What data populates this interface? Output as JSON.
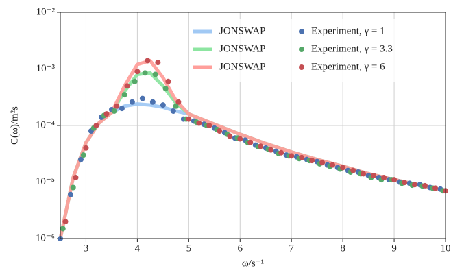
{
  "chart_data": {
    "type": "line",
    "xlabel": "ω/s⁻¹",
    "ylabel": "C(ω)/m²s",
    "xlim": [
      2.5,
      10
    ],
    "xticks": [
      3,
      4,
      5,
      6,
      7,
      8,
      9,
      10
    ],
    "ylim": [
      1e-06,
      0.01
    ],
    "log_y": true,
    "grid": true,
    "legend": "upper right",
    "yticks": [
      {
        "value": 1e-06,
        "label": "10⁻⁶"
      },
      {
        "value": 1e-05,
        "label": "10⁻⁵"
      },
      {
        "value": 0.0001,
        "label": "10⁻⁴"
      },
      {
        "value": 0.001,
        "label": "10⁻³"
      },
      {
        "value": 0.01,
        "label": "10⁻²"
      }
    ],
    "series": [
      {
        "name": "JONSWAP",
        "style": "line",
        "color": "#a1c9f4",
        "x": [
          2.5,
          2.75,
          3,
          3.25,
          3.5,
          3.75,
          4,
          4.25,
          4.5,
          4.75,
          5,
          5.5,
          6,
          6.5,
          7,
          7.5,
          8,
          8.5,
          9,
          9.5,
          10
        ],
        "values": [
          1e-06,
          1.2e-05,
          5e-05,
          0.00011,
          0.00017,
          0.00022,
          0.00024,
          0.00023,
          0.00021,
          0.00018,
          0.00016,
          0.000105,
          7e-05,
          4.8e-05,
          3.4e-05,
          2.5e-05,
          1.9e-05,
          1.4e-05,
          1.1e-05,
          8.8e-06,
          7e-06
        ]
      },
      {
        "name": "JONSWAP",
        "style": "line",
        "color": "#8de5a1",
        "x": [
          2.5,
          2.75,
          3,
          3.25,
          3.5,
          3.75,
          4,
          4.25,
          4.5,
          4.75,
          5,
          5.5,
          6,
          6.5,
          7,
          7.5,
          8,
          8.5,
          9,
          9.5,
          10
        ],
        "values": [
          1e-06,
          1.2e-05,
          5e-05,
          0.00011,
          0.00017,
          0.0004,
          0.0008,
          0.00085,
          0.0005,
          0.00025,
          0.00016,
          0.000105,
          7e-05,
          4.8e-05,
          3.4e-05,
          2.5e-05,
          1.9e-05,
          1.4e-05,
          1.1e-05,
          8.8e-06,
          7e-06
        ]
      },
      {
        "name": "JONSWAP",
        "style": "line",
        "color": "#ff9f9b",
        "x": [
          2.5,
          2.75,
          3,
          3.25,
          3.5,
          3.75,
          4,
          4.25,
          4.5,
          4.75,
          5,
          5.5,
          6,
          6.5,
          7,
          7.5,
          8,
          8.5,
          9,
          9.5,
          10
        ],
        "values": [
          1e-06,
          1.2e-05,
          5e-05,
          0.00011,
          0.00017,
          0.0005,
          0.0012,
          0.0014,
          0.0007,
          0.00028,
          0.00016,
          0.000105,
          7e-05,
          4.8e-05,
          3.4e-05,
          2.5e-05,
          1.9e-05,
          1.4e-05,
          1.1e-05,
          8.8e-06,
          7e-06
        ]
      },
      {
        "name": "Experiment, γ = 1",
        "style": "scatter",
        "color": "#4c72b0",
        "x": [
          2.5,
          2.7,
          2.9,
          3.1,
          3.3,
          3.5,
          3.7,
          3.9,
          4.1,
          4.3,
          4.5,
          4.7,
          4.9,
          5.1,
          5.3,
          5.5,
          5.7,
          5.9,
          6.1,
          6.3,
          6.5,
          6.7,
          6.9,
          7.1,
          7.3,
          7.5,
          7.7,
          7.9,
          8.1,
          8.3,
          8.5,
          8.7,
          8.9,
          9.1,
          9.3,
          9.5,
          9.7,
          9.9
        ],
        "values": [
          1e-06,
          6e-06,
          2.5e-05,
          8e-05,
          0.00014,
          0.00019,
          0.0002,
          0.00026,
          0.0003,
          0.00026,
          0.00023,
          0.00018,
          0.00013,
          0.00012,
          0.000105,
          9e-05,
          7.5e-05,
          6e-05,
          5.5e-05,
          4.5e-05,
          4e-05,
          3.5e-05,
          3e-05,
          2.8e-05,
          2.5e-05,
          2.3e-05,
          2e-05,
          1.8e-05,
          1.6e-05,
          1.5e-05,
          1.3e-05,
          1.2e-05,
          1.1e-05,
          1e-05,
          9.5e-06,
          9e-06,
          8e-06,
          7.5e-06
        ]
      },
      {
        "name": "Experiment, γ = 3.3",
        "style": "scatter",
        "color": "#55a868",
        "x": [
          2.55,
          2.75,
          2.95,
          3.15,
          3.35,
          3.55,
          3.75,
          3.95,
          4.15,
          4.35,
          4.55,
          4.75,
          4.95,
          5.15,
          5.35,
          5.55,
          5.75,
          5.95,
          6.15,
          6.35,
          6.55,
          6.75,
          6.95,
          7.15,
          7.35,
          7.55,
          7.75,
          7.95,
          8.15,
          8.35,
          8.55,
          8.75,
          8.95,
          9.15,
          9.35,
          9.55,
          9.75,
          9.95
        ],
        "values": [
          1.5e-06,
          8e-06,
          3e-05,
          9e-05,
          0.00015,
          0.00018,
          0.00035,
          0.0006,
          0.00085,
          0.0008,
          0.00045,
          0.00022,
          0.00013,
          0.000115,
          0.0001,
          8.5e-05,
          7e-05,
          6e-05,
          5e-05,
          4.2e-05,
          3.8e-05,
          3.2e-05,
          2.9e-05,
          2.6e-05,
          2.4e-05,
          2.1e-05,
          1.9e-05,
          1.7e-05,
          1.5e-05,
          1.4e-05,
          1.2e-05,
          1.1e-05,
          1.1e-05,
          9.5e-06,
          8.8e-06,
          8.5e-06,
          7.8e-06,
          7e-06
        ]
      },
      {
        "name": "Experiment, γ = 6",
        "style": "scatter",
        "color": "#c44e52",
        "x": [
          2.6,
          2.8,
          3,
          3.2,
          3.4,
          3.6,
          3.8,
          4,
          4.2,
          4.4,
          4.6,
          4.8,
          5,
          5.2,
          5.4,
          5.6,
          5.8,
          6,
          6.2,
          6.4,
          6.6,
          6.8,
          7,
          7.2,
          7.4,
          7.6,
          7.8,
          8,
          8.2,
          8.4,
          8.6,
          8.8,
          9,
          9.2,
          9.4,
          9.6,
          9.8,
          10
        ],
        "values": [
          2e-06,
          1.2e-05,
          4e-05,
          0.0001,
          0.00016,
          0.00022,
          0.0005,
          0.0009,
          0.0014,
          0.0013,
          0.0006,
          0.00026,
          0.00013,
          0.00011,
          0.0001,
          8e-05,
          6.5e-05,
          5.8e-05,
          5e-05,
          4.3e-05,
          3.7e-05,
          3.3e-05,
          2.9e-05,
          2.7e-05,
          2.4e-05,
          2.2e-05,
          2e-05,
          1.8e-05,
          1.6e-05,
          1.4e-05,
          1.3e-05,
          1.2e-05,
          1.1e-05,
          9.8e-06,
          9e-06,
          8.6e-06,
          7.8e-06,
          7e-06
        ]
      }
    ]
  }
}
